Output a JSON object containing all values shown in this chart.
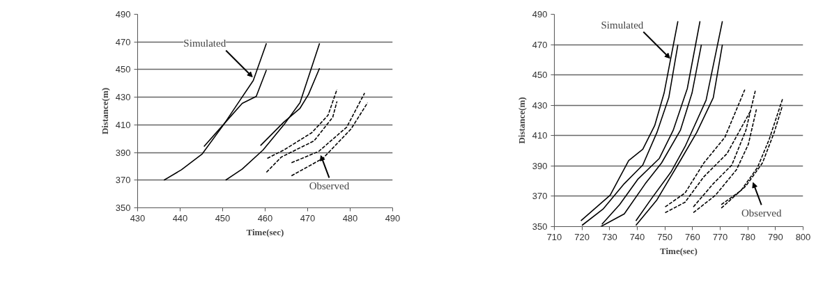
{
  "chart_data": [
    {
      "type": "line",
      "xlabel": "Time(sec)",
      "ylabel": "Distance(m)",
      "xlim": [
        430,
        490
      ],
      "ylim": [
        350,
        490
      ],
      "xticks": [
        430,
        440,
        450,
        460,
        470,
        480,
        490
      ],
      "yticks": [
        350,
        370,
        390,
        410,
        430,
        450,
        470,
        490
      ],
      "grid": "y",
      "series": [
        {
          "color": "#000000",
          "line_style": "solid",
          "x": [
            436.2,
            440.3,
            445.2,
            450.2,
            453.9,
            457.2,
            460.3
          ],
          "values": [
            370,
            377.5,
            389,
            410,
            427,
            442,
            469
          ]
        },
        {
          "color": "#000000",
          "line_style": "solid",
          "x": [
            445.6,
            450.7,
            454.6,
            457.9,
            460.3
          ],
          "values": [
            394.3,
            412,
            425.5,
            430.6,
            449.7
          ]
        },
        {
          "color": "#000000",
          "line_style": "solid",
          "x": [
            450.7,
            454.6,
            459.5,
            464.4,
            468.2,
            472.8
          ],
          "values": [
            370,
            378,
            391.8,
            410,
            426,
            469
          ]
        },
        {
          "color": "#000000",
          "line_style": "solid",
          "x": [
            458.9,
            464.4,
            468.2,
            470.2,
            472.8
          ],
          "values": [
            395,
            412,
            422,
            432,
            451
          ]
        },
        {
          "color": "#000000",
          "line_style": "dashed",
          "x": [
            460.5,
            464.4,
            471,
            474.8,
            476.9
          ],
          "values": [
            385.8,
            391.8,
            404.4,
            417,
            435.6
          ]
        },
        {
          "color": "#000000",
          "line_style": "dashed",
          "x": [
            460.3,
            463.8,
            471.5,
            475.9,
            476.9
          ],
          "values": [
            375.7,
            386.7,
            398.4,
            415.5,
            427
          ]
        },
        {
          "color": "#000000",
          "line_style": "dashed",
          "x": [
            466.2,
            472.6,
            479.2,
            483.4
          ],
          "values": [
            382.6,
            390.8,
            408.4,
            433
          ]
        },
        {
          "color": "#000000",
          "line_style": "dashed",
          "x": [
            466.2,
            473.6,
            480.2,
            484.1
          ],
          "values": [
            373.2,
            385.8,
            407,
            426
          ]
        }
      ],
      "annotations": [
        {
          "text": "Simulated",
          "x": 457.0,
          "y": 444.7
        },
        {
          "text": "Observed",
          "x": 473.1,
          "y": 387.8
        }
      ]
    },
    {
      "type": "line",
      "xlabel": "Time(sec)",
      "ylabel": "Distance(m)",
      "xlim": [
        710,
        800
      ],
      "ylim": [
        350,
        490
      ],
      "xticks": [
        710,
        720,
        730,
        740,
        750,
        760,
        770,
        780,
        790,
        800
      ],
      "yticks": [
        350,
        370,
        390,
        410,
        430,
        450,
        470,
        490
      ],
      "grid": "y",
      "series": [
        {
          "color": "#000000",
          "line_style": "solid",
          "x": [
            719.6,
            730.2,
            736.9,
            742,
            746.3,
            749.7,
            754.7
          ],
          "values": [
            353.8,
            370.7,
            393.6,
            401,
            416.6,
            438,
            485.4
          ]
        },
        {
          "color": "#000000",
          "line_style": "solid",
          "x": [
            720,
            727.6,
            735.3,
            742,
            747.1,
            751.4,
            754.7
          ],
          "values": [
            350.8,
            361.5,
            378.3,
            390.6,
            412,
            435,
            470
          ]
        },
        {
          "color": "#000000",
          "line_style": "solid",
          "x": [
            727.2,
            733.6,
            740.3,
            748,
            753,
            758.1,
            762.7
          ],
          "values": [
            351.5,
            364.5,
            381.4,
            395,
            413.5,
            441,
            485.4
          ]
        },
        {
          "color": "#000000",
          "line_style": "solid",
          "x": [
            726.8,
            735.3,
            742.9,
            748.8,
            755.6,
            759.8,
            763.2
          ],
          "values": [
            350,
            358.4,
            378.3,
            392,
            413.5,
            438,
            470
          ]
        },
        {
          "color": "#000000",
          "line_style": "solid",
          "x": [
            739.5,
            745.4,
            752.2,
            757.3,
            764.9,
            770.8
          ],
          "values": [
            353.8,
            369.1,
            386,
            402.8,
            433.4,
            485.4
          ]
        },
        {
          "color": "#000000",
          "line_style": "solid",
          "x": [
            739.5,
            747.1,
            755.6,
            761.5,
            767.5,
            770.8
          ],
          "values": [
            350.8,
            367.6,
            393.6,
            412,
            435,
            470
          ]
        },
        {
          "color": "#000000",
          "line_style": "dashed",
          "x": [
            750.1,
            757.3,
            764.1,
            771.7,
            778.9
          ],
          "values": [
            363,
            372.2,
            392,
            408.9,
            440.3
          ]
        },
        {
          "color": "#000000",
          "line_style": "dashed",
          "x": [
            750.1,
            757.3,
            764.1,
            772.5,
            780.8
          ],
          "values": [
            359.2,
            366.1,
            382.9,
            398.2,
            425.7
          ]
        },
        {
          "color": "#000000",
          "line_style": "dashed",
          "x": [
            760.3,
            767.5,
            774.2,
            779.3,
            782.7
          ],
          "values": [
            363,
            378.3,
            390.6,
            413.5,
            439.5
          ]
        },
        {
          "color": "#000000",
          "line_style": "dashed",
          "x": [
            760.3,
            768.3,
            775.9,
            780.2,
            783.1
          ],
          "values": [
            359.2,
            370.7,
            387.5,
            404.3,
            427.3
          ]
        },
        {
          "color": "#000000",
          "line_style": "dashed",
          "x": [
            770.4,
            777.5,
            783.5,
            787.7,
            792.7
          ],
          "values": [
            364.5,
            373.7,
            389,
            407.4,
            434.9
          ]
        },
        {
          "color": "#000000",
          "line_style": "dashed",
          "x": [
            770.4,
            779.3,
            785.3,
            789.5,
            792.5
          ],
          "values": [
            362.2,
            376.8,
            392,
            411.9,
            429.6
          ]
        }
      ],
      "annotations": [
        {
          "text": "Simulated",
          "x": 751.8,
          "y": 461
        },
        {
          "text": "Observed",
          "x": 781.9,
          "y": 379
        }
      ]
    }
  ]
}
